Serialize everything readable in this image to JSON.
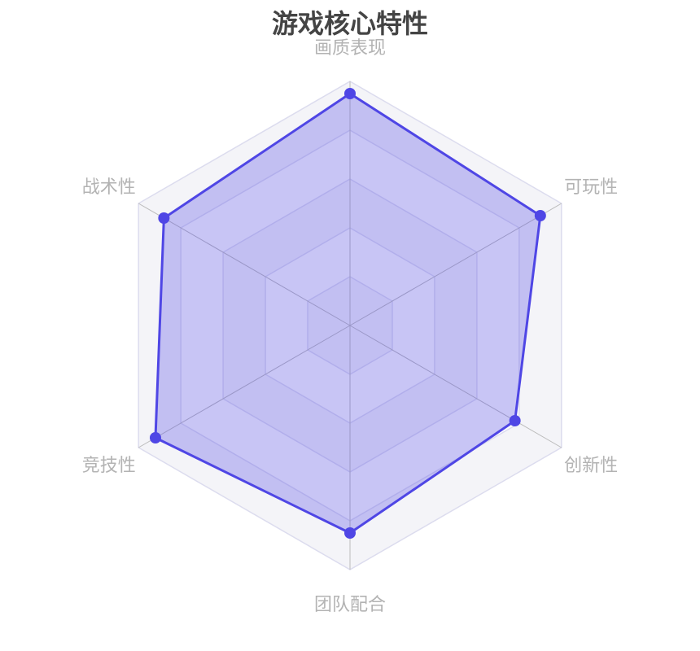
{
  "chart_data": {
    "type": "radar",
    "title": "游戏核心特性",
    "indicators": [
      "画质表现",
      "可玩性",
      "创新性",
      "团队配合",
      "竞技性",
      "战术性"
    ],
    "max": 100,
    "series": [
      {
        "values": [
          95,
          90,
          78,
          85,
          92,
          88
        ]
      }
    ],
    "split_number": 5,
    "colors": {
      "line": "#4f46e5",
      "area": "#4f46e5",
      "axis": "#bbbbbb",
      "split": "#dcdcee",
      "title": "#444444",
      "label": "#b3b3b3"
    }
  }
}
